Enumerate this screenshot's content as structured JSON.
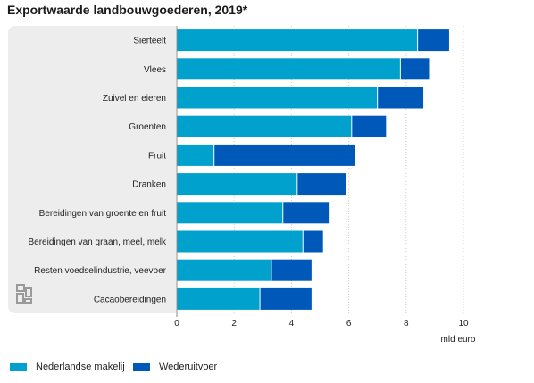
{
  "title": "Exportwaarde landbouwgoederen, 2019*",
  "colors": {
    "series1": "#00a1cd",
    "series2": "#0058b8",
    "panel": "#ededed",
    "grid": "#cccccc"
  },
  "legend": [
    {
      "label": "Nederlandse makelij",
      "color": "#00a1cd"
    },
    {
      "label": "Wederuitvoer",
      "color": "#0058b8"
    }
  ],
  "chart_data": {
    "type": "bar",
    "orientation": "horizontal",
    "stacked": true,
    "title": "Exportwaarde landbouwgoederen, 2019*",
    "xlabel": "mld euro",
    "ylabel": "",
    "xlim": [
      0,
      10
    ],
    "xticks": [
      0,
      2,
      4,
      6,
      8,
      10
    ],
    "grid": true,
    "legend_position": "bottom-left",
    "categories": [
      "Sierteelt",
      "Vlees",
      "Zuivel en eieren",
      "Groenten",
      "Fruit",
      "Dranken",
      "Bereidingen van groente en fruit",
      "Bereidingen van graan, meel, melk",
      "Resten voedselindustrie, veevoer",
      "Cacaobereidingen"
    ],
    "series": [
      {
        "name": "Nederlandse makelij",
        "values": [
          8.4,
          7.8,
          7.0,
          6.1,
          1.3,
          4.2,
          3.7,
          4.4,
          3.3,
          2.9
        ]
      },
      {
        "name": "Wederuitvoer",
        "values": [
          1.1,
          1.0,
          1.6,
          1.2,
          4.9,
          1.7,
          1.6,
          0.7,
          1.4,
          1.8
        ]
      }
    ]
  }
}
